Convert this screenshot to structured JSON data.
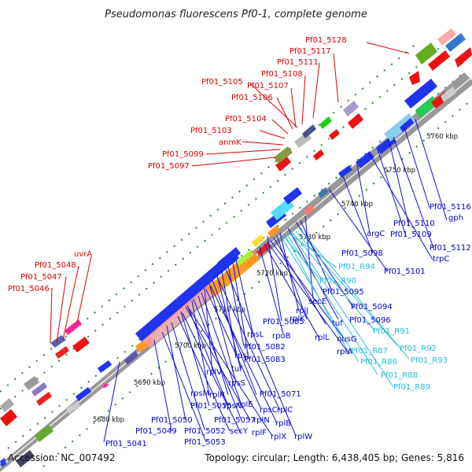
{
  "title": "Pseudomonas fluorescens Pf0-1, complete genome",
  "footer": {
    "accession": "Accession: NC_007492",
    "summary": "Topology: circular; Length: 6,438,405 bp; Genes: 5,816"
  },
  "kbp_ticks": [
    "5680 kbp",
    "5690 kbp",
    "5700 kbp",
    "5710 kbp",
    "5720 kbp",
    "5730 kbp",
    "5740 kbp",
    "5750 kbp",
    "5760 kbp"
  ],
  "red_labels": [
    "Pf01_5128",
    "Pf01_5117",
    "Pf01_5111",
    "Pf01_5108",
    "Pf01_5105",
    "Pf01_5107",
    "Pf01_5106",
    "Pf01_5104",
    "Pf01_5103",
    "anmK",
    "Pf01_5099",
    "Pf01_5097",
    "uvrA",
    "Pf01_5048",
    "Pf01_5047",
    "Pf01_5046"
  ],
  "blue_labels": [
    "gph",
    "Pf01_5116",
    "Pf01_5110",
    "Pf01_5109",
    "Pf01_5112",
    "trpC",
    "argC",
    "Pf01_5098",
    "Pf01_5101",
    "secE",
    "Pf01_5095",
    "Pf01_5094",
    "Pf01_5096",
    "Pf01_5085",
    "rplJ",
    "rplK",
    "tuf",
    "nusG",
    "rplA",
    "rpoB",
    "rplL",
    "rpsL",
    "Pf01_5082",
    "Pf01_5083",
    "rpsJ",
    "tuf",
    "rplV",
    "rpsS",
    "Pf01_5071",
    "rpsM",
    "rplR",
    "rpsN",
    "rplE",
    "rpsC",
    "rplC",
    "Pf01_5055",
    "Pf01_5057",
    "rplN",
    "rplB",
    "Pf01_5050",
    "Pf01_5052",
    "secY",
    "rplF",
    "rplX",
    "rplW",
    "Pf01_5049",
    "Pf01_5053",
    "Pf01_5041"
  ],
  "cyan_labels": [
    "Pf01_R90",
    "Pf01_R94",
    "Pf01_R91",
    "Pf01_R92",
    "Pf01_R93",
    "Pf01_R87",
    "Pf01_R86",
    "Pf01_R88",
    "Pf01_R89"
  ],
  "colors": {
    "red": "#dd0000",
    "blue": "#0000cc",
    "cyan": "#22bbdd",
    "backbone": "#888888"
  }
}
